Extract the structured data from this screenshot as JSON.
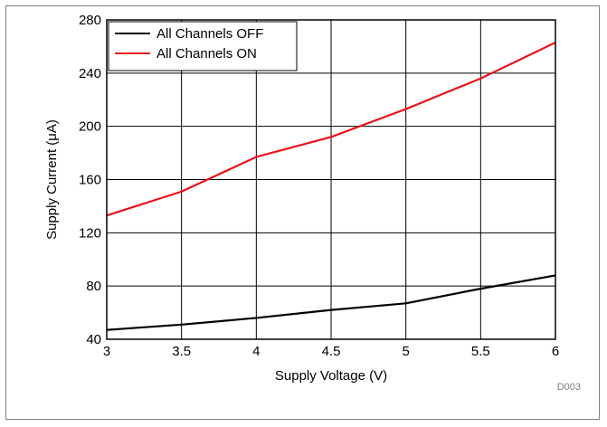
{
  "chart_data": {
    "type": "line",
    "xlabel": "Supply Voltage (V)",
    "ylabel": "Supply Current (μA)",
    "xlim": [
      3,
      6
    ],
    "ylim": [
      40,
      280
    ],
    "x_ticks": [
      "3",
      "3.5",
      "4",
      "4.5",
      "5",
      "5.5",
      "6"
    ],
    "y_ticks": [
      "40",
      "80",
      "120",
      "160",
      "200",
      "240",
      "280"
    ],
    "grid": true,
    "legend_position": "top-left",
    "x": [
      3,
      3.5,
      4,
      4.5,
      5,
      5.5,
      6
    ],
    "series": [
      {
        "name": "All Channels OFF",
        "color": "#000000",
        "values": [
          47,
          51,
          56,
          62,
          67,
          78,
          88
        ]
      },
      {
        "name": "All Channels ON",
        "color": "#e8141b",
        "values": [
          133,
          151,
          177,
          192,
          213,
          236,
          263
        ]
      }
    ],
    "annotation": "D003"
  }
}
